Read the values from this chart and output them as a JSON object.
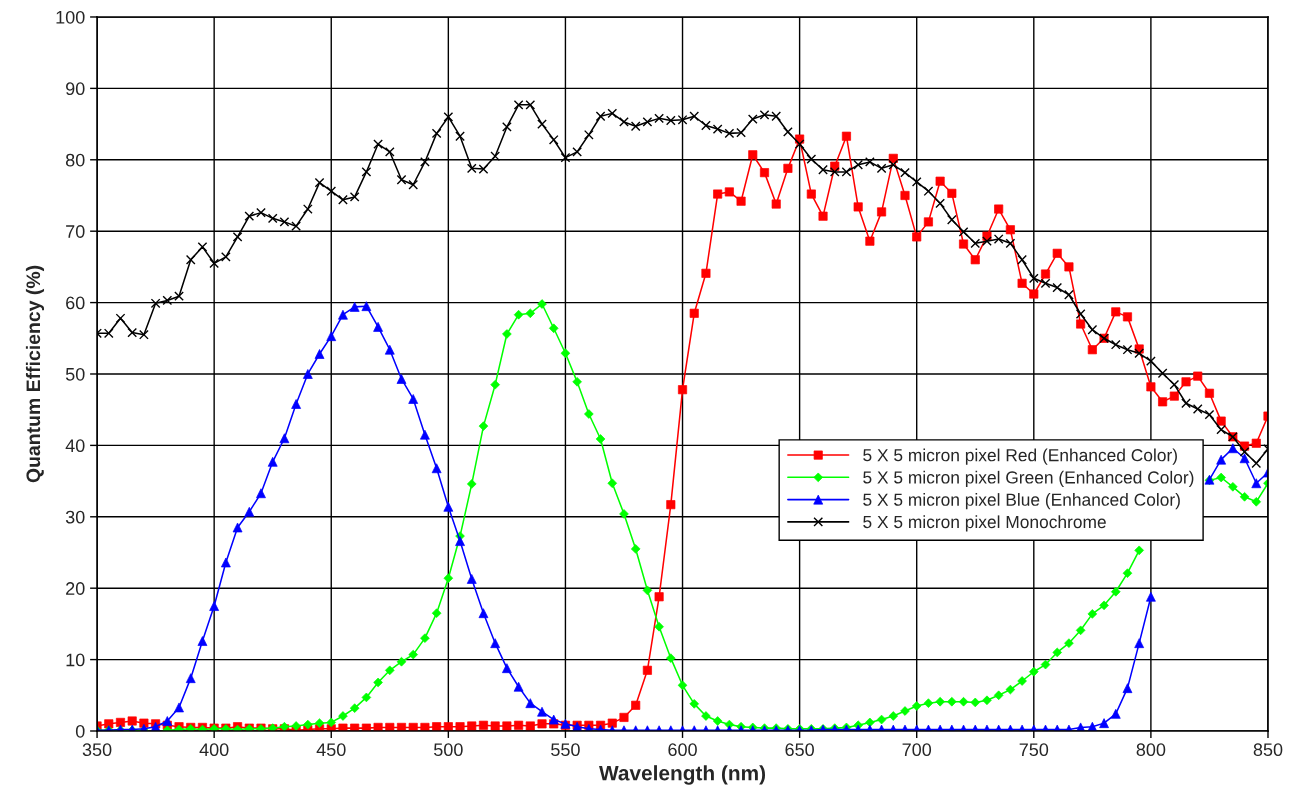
{
  "chart_data": {
    "type": "line",
    "xlabel": "Wavelength (nm)",
    "ylabel": "Quantum Efficiency (%)",
    "x": [
      350,
      355,
      360,
      365,
      370,
      375,
      380,
      385,
      390,
      395,
      400,
      405,
      410,
      415,
      420,
      425,
      430,
      435,
      440,
      445,
      450,
      455,
      460,
      465,
      470,
      475,
      480,
      485,
      490,
      495,
      500,
      505,
      510,
      515,
      520,
      525,
      530,
      535,
      540,
      545,
      550,
      555,
      560,
      565,
      570,
      575,
      580,
      585,
      590,
      595,
      600,
      605,
      610,
      615,
      620,
      625,
      630,
      635,
      640,
      645,
      650,
      655,
      660,
      665,
      670,
      675,
      680,
      685,
      690,
      695,
      700,
      705,
      710,
      715,
      720,
      725,
      730,
      735,
      740,
      745,
      750,
      755,
      760,
      765,
      770,
      775,
      780,
      785,
      790,
      795,
      800,
      805,
      810,
      815,
      820,
      825,
      830,
      835,
      840,
      845,
      850
    ],
    "xlim": [
      350,
      850
    ],
    "xticks": [
      350,
      400,
      450,
      500,
      550,
      600,
      650,
      700,
      750,
      800,
      850
    ],
    "ylim": [
      0,
      100
    ],
    "yticks": [
      0,
      10,
      20,
      30,
      40,
      50,
      60,
      70,
      80,
      90,
      100
    ],
    "grid": true,
    "legend": "lower right",
    "line_style": "solid",
    "series": [
      {
        "name": "5 X 5 micron pixel Red (Enhanced Color)",
        "color": "#ff0000",
        "marker": "square",
        "values": [
          0.7,
          1.0,
          1.2,
          1.4,
          1.1,
          1.0,
          0.8,
          0.6,
          0.5,
          0.5,
          0.4,
          0.4,
          0.6,
          0.4,
          0.4,
          0.3,
          0.3,
          0.1,
          0.2,
          0.3,
          0.3,
          0.4,
          0.4,
          0.4,
          0.5,
          0.5,
          0.5,
          0.5,
          0.5,
          0.6,
          0.6,
          0.6,
          0.7,
          0.8,
          0.7,
          0.7,
          0.8,
          0.7,
          1.0,
          1.0,
          0.8,
          0.8,
          0.8,
          0.8,
          1.1,
          1.9,
          3.6,
          8.5,
          18.8,
          31.7,
          47.8,
          58.5,
          64.1,
          75.2,
          75.5,
          74.2,
          80.7,
          78.2,
          73.8,
          78.8,
          82.9,
          75.2,
          72.1,
          79.1,
          83.3,
          73.4,
          68.6,
          72.7,
          80.2,
          75.0,
          69.2,
          71.3,
          77.0,
          75.3,
          68.2,
          66.0,
          69.3,
          73.1,
          70.2,
          62.7,
          61.2,
          64.0,
          66.9,
          65.0,
          57.0,
          53.4,
          55.0,
          58.7,
          58.0,
          53.5,
          48.2,
          46.1,
          46.9,
          48.9,
          49.7,
          47.3,
          43.4,
          41.2,
          39.9,
          40.3,
          44.1
        ]
      },
      {
        "name": "5 X 5 micron pixel Green (Enhanced Color)",
        "color": "#00ff00",
        "marker": "diamond",
        "values": [
          0.1,
          0.1,
          0.1,
          0.1,
          0.1,
          null,
          0.1,
          0.2,
          0.3,
          0.2,
          0.3,
          0.3,
          0.2,
          0.3,
          0.3,
          0.4,
          0.6,
          0.7,
          0.9,
          1.1,
          1.2,
          2.1,
          3.2,
          4.7,
          6.8,
          8.5,
          9.7,
          10.7,
          13.0,
          16.5,
          21.4,
          27.3,
          34.6,
          42.7,
          48.5,
          55.6,
          58.3,
          58.5,
          59.8,
          56.4,
          52.9,
          48.9,
          44.4,
          40.9,
          34.7,
          30.4,
          25.5,
          19.7,
          14.6,
          10.2,
          6.4,
          3.8,
          2.1,
          1.4,
          0.9,
          0.6,
          0.5,
          0.4,
          0.4,
          0.3,
          0.3,
          0.3,
          0.3,
          0.4,
          0.5,
          0.8,
          1.2,
          1.6,
          2.1,
          2.8,
          3.5,
          3.9,
          4.1,
          4.1,
          4.1,
          4.0,
          4.3,
          5.0,
          5.8,
          7.0,
          8.3,
          9.3,
          11.0,
          12.3,
          14.1,
          16.4,
          17.6,
          19.5,
          22.1,
          25.3,
          null,
          null,
          null,
          null,
          null,
          35.1,
          35.5,
          34.2,
          32.8,
          32.1,
          34.7
        ]
      },
      {
        "name": "5 X 5 micron pixel Blue (Enhanced Color)",
        "color": "#0000ff",
        "marker": "triangle",
        "values": [
          0.1,
          0.1,
          0.2,
          0.2,
          0.3,
          0.6,
          1.4,
          3.3,
          7.4,
          12.6,
          17.5,
          23.6,
          28.5,
          30.7,
          33.3,
          37.7,
          41.0,
          45.8,
          50.0,
          52.8,
          55.3,
          58.3,
          59.4,
          59.5,
          56.6,
          53.4,
          49.3,
          46.5,
          41.5,
          36.8,
          31.4,
          26.6,
          21.3,
          16.5,
          12.3,
          8.8,
          6.2,
          3.9,
          2.7,
          1.6,
          1.0,
          0.6,
          0.3,
          0.2,
          0.1,
          0.1,
          0.1,
          0.1,
          0.1,
          0.1,
          0.1,
          0.1,
          0.1,
          0.1,
          0.1,
          0.1,
          0.1,
          0.1,
          0.1,
          0.1,
          0.1,
          0.1,
          0.2,
          0.2,
          0.2,
          0.2,
          0.2,
          0.2,
          0.2,
          0.2,
          0.2,
          0.2,
          0.2,
          0.2,
          0.2,
          0.2,
          0.2,
          0.2,
          0.2,
          0.2,
          0.2,
          0.2,
          0.2,
          0.2,
          0.5,
          0.6,
          1.1,
          2.4,
          6.0,
          12.3,
          18.8,
          null,
          null,
          null,
          null,
          35.2,
          38.0,
          39.6,
          38.2,
          34.7,
          36.2
        ]
      },
      {
        "name": "5 X 5 micron pixel Monochrome",
        "color": "#000000",
        "marker": "cross",
        "values": [
          55.7,
          55.7,
          57.8,
          55.8,
          55.5,
          59.9,
          60.3,
          60.9,
          66.0,
          67.8,
          65.5,
          66.4,
          69.2,
          72.1,
          72.6,
          71.8,
          71.3,
          70.7,
          73.1,
          76.8,
          75.6,
          74.4,
          74.8,
          78.3,
          82.2,
          81.1,
          77.2,
          76.5,
          79.7,
          83.7,
          86.0,
          83.3,
          78.8,
          78.7,
          80.5,
          84.6,
          87.7,
          87.7,
          85.0,
          82.8,
          80.3,
          81.1,
          83.5,
          86.1,
          86.5,
          85.3,
          84.7,
          85.3,
          85.8,
          85.5,
          85.6,
          86.1,
          84.8,
          84.3,
          83.7,
          83.8,
          85.7,
          86.3,
          86.1,
          83.9,
          82.2,
          80.1,
          78.6,
          78.3,
          78.3,
          79.3,
          79.7,
          78.8,
          79.3,
          78.2,
          76.9,
          75.6,
          73.9,
          71.6,
          69.9,
          68.3,
          68.6,
          68.9,
          68.3,
          66.0,
          63.4,
          62.7,
          62.1,
          61.1,
          58.4,
          56.2,
          55.0,
          54.1,
          53.4,
          52.9,
          51.8,
          50.1,
          48.5,
          45.9,
          45.1,
          44.3,
          42.2,
          41.2,
          39.1,
          37.5,
          39.5
        ]
      }
    ]
  }
}
